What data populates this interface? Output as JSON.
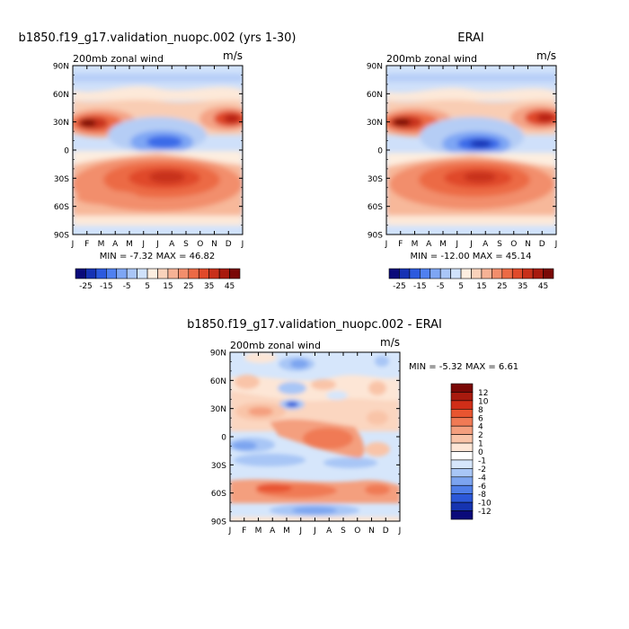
{
  "chart_data": [
    {
      "type": "heatmap",
      "title": "b1850.f19_g17.validation_nuopc.002 (yrs 1-30)",
      "left_label": "200mb zonal wind",
      "right_label": "m/s",
      "x_ticks": [
        "J",
        "F",
        "M",
        "A",
        "M",
        "J",
        "J",
        "A",
        "S",
        "O",
        "N",
        "D",
        "J"
      ],
      "y_ticks": [
        "90N",
        "60N",
        "30N",
        "0",
        "30S",
        "60S",
        "90S"
      ],
      "min_max_text": "MIN =   -7.32  MAX =   46.82",
      "colorbar": {
        "orientation": "horizontal",
        "labels": [
          "-25",
          "-15",
          "-5",
          "5",
          "15",
          "25",
          "35",
          "45"
        ],
        "colors": [
          "#0a0a7a",
          "#1632b4",
          "#2c5ade",
          "#4f80f0",
          "#7ea6f4",
          "#a9c6f7",
          "#d0e2fb",
          "#fdeee0",
          "#f9d2bb",
          "#f6b295",
          "#f28e6c",
          "#ec6a45",
          "#e04a2a",
          "#c8301a",
          "#a81a0e",
          "#7a0806"
        ]
      }
    },
    {
      "type": "heatmap",
      "title": "ERAI",
      "left_label": "200mb zonal wind",
      "right_label": "m/s",
      "x_ticks": [
        "J",
        "F",
        "M",
        "A",
        "M",
        "J",
        "J",
        "A",
        "S",
        "O",
        "N",
        "D",
        "J"
      ],
      "y_ticks": [
        "90N",
        "60N",
        "30N",
        "0",
        "30S",
        "60S",
        "90S"
      ],
      "min_max_text": "MIN =  -12.00  MAX =   45.14",
      "colorbar": {
        "orientation": "horizontal",
        "labels": [
          "-25",
          "-15",
          "-5",
          "5",
          "15",
          "25",
          "35",
          "45"
        ],
        "colors": [
          "#0a0a7a",
          "#1632b4",
          "#2c5ade",
          "#4f80f0",
          "#7ea6f4",
          "#a9c6f7",
          "#d0e2fb",
          "#fdeee0",
          "#f9d2bb",
          "#f6b295",
          "#f28e6c",
          "#ec6a45",
          "#e04a2a",
          "#c8301a",
          "#a81a0e",
          "#7a0806"
        ]
      }
    },
    {
      "type": "heatmap",
      "title": "b1850.f19_g17.validation_nuopc.002 - ERAI",
      "left_label": "200mb zonal wind",
      "right_label": "m/s",
      "x_ticks": [
        "J",
        "F",
        "M",
        "A",
        "M",
        "J",
        "J",
        "A",
        "S",
        "O",
        "N",
        "D",
        "J"
      ],
      "y_ticks": [
        "90N",
        "60N",
        "30N",
        "0",
        "30S",
        "60S",
        "90S"
      ],
      "min_max_text": "MIN =   -5.32  MAX =    6.61",
      "colorbar": {
        "orientation": "vertical",
        "labels": [
          "12",
          "10",
          "8",
          "6",
          "4",
          "2",
          "1",
          "0",
          "-1",
          "-2",
          "-4",
          "-6",
          "-8",
          "-10",
          "-12"
        ],
        "colors": [
          "#7a0806",
          "#a81a0e",
          "#d02e18",
          "#e85530",
          "#f07a55",
          "#f49f7e",
          "#f9c4a8",
          "#fde6d6",
          "#ffffff",
          "#d6e6fb",
          "#a8c6f6",
          "#7ca4f0",
          "#4f7ee8",
          "#2c58d8",
          "#1634b0",
          "#0a0a7a"
        ]
      }
    }
  ]
}
